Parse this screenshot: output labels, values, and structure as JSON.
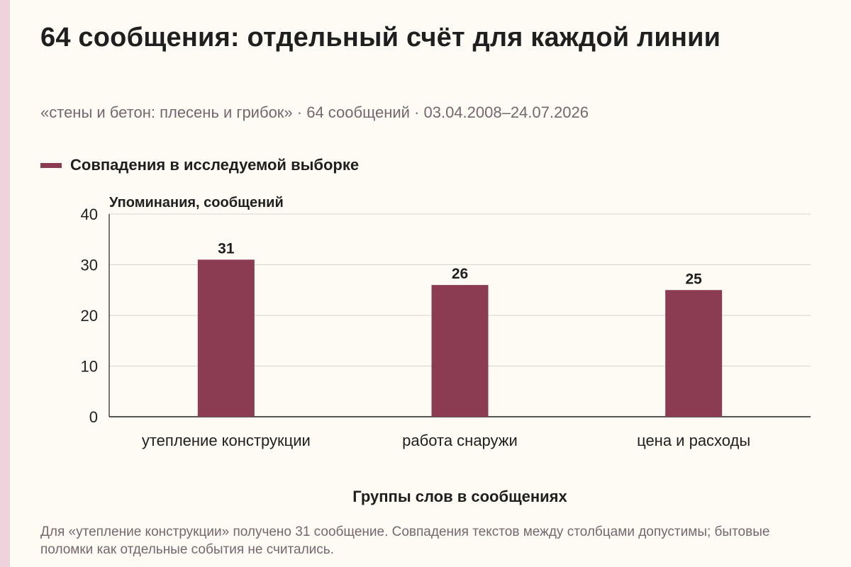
{
  "title": "64 сообщения: отдельный счёт для каждой линии",
  "subtitle": "«стены и бетон: плесень и грибок» · 64 сообщений · 03.04.2008–24.07.2026",
  "legend": {
    "label": "Совпадения в исследуемой выборке"
  },
  "note": "Для «утепление конструкции» получено 31 сообщение. Совпадения текстов между столбцами допустимы; бытовые поломки как отдельные события не считались.",
  "colors": {
    "bar": "#8b3b52",
    "accent_stripe": "#efd3dc",
    "background": "#fdfbf4"
  },
  "chart_data": {
    "type": "bar",
    "title": "64 сообщения: отдельный счёт для каждой линии",
    "subtitle": "«стены и бетон: плесень и грибок» · 64 сообщений · 03.04.2008–24.07.2026",
    "categories": [
      "утепление конструкции",
      "работа снаружи",
      "цена и расходы"
    ],
    "series": [
      {
        "name": "Совпадения в исследуемой выборке",
        "values": [
          31,
          26,
          25
        ]
      }
    ],
    "data_labels": [
      "31",
      "26",
      "25"
    ],
    "xlabel": "Группы слов в сообщениях",
    "ylabel": "Упоминания, сообщений",
    "ylim": [
      0,
      40
    ],
    "yticks": [
      0,
      10,
      20,
      30,
      40
    ],
    "grid": true,
    "legend_position": "top-left"
  }
}
